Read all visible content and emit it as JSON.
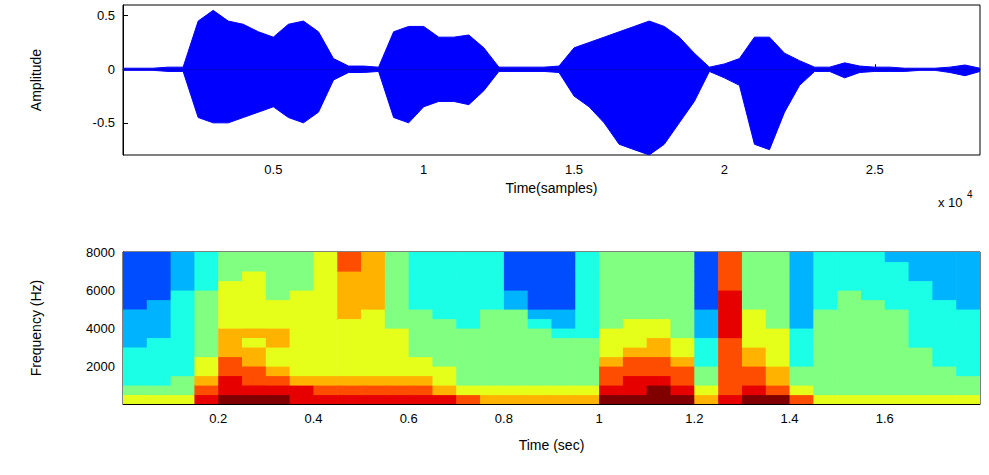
{
  "chart_data": [
    {
      "type": "area",
      "xlabel": "Time(samples)",
      "ylabel": "Amplitude",
      "x": [
        0,
        0.05,
        0.1,
        0.15,
        0.2,
        0.25,
        0.3,
        0.35,
        0.4,
        0.45,
        0.5,
        0.55,
        0.6,
        0.65,
        0.7,
        0.75,
        0.8,
        0.85,
        0.9,
        0.95,
        1,
        1.05,
        1.1,
        1.15,
        1.2,
        1.25,
        1.3,
        1.35,
        1.4,
        1.45,
        1.5,
        1.55,
        1.6,
        1.65,
        1.7,
        1.75,
        1.8,
        1.85,
        1.9,
        1.95,
        2,
        2.05,
        2.1,
        2.15,
        2.2,
        2.25,
        2.3,
        2.35,
        2.4,
        2.45,
        2.5,
        2.55,
        2.6,
        2.65,
        2.7,
        2.75,
        2.8,
        2.85
      ],
      "series": [
        {
          "color": "#0000ff",
          "values": [
            0.01,
            0.01,
            0.01,
            0.02,
            0.02,
            0.45,
            0.55,
            0.45,
            0.42,
            0.35,
            0.3,
            0.42,
            0.45,
            0.35,
            0.1,
            0.03,
            0.03,
            0.02,
            0.35,
            0.4,
            0.4,
            0.3,
            0.3,
            0.32,
            0.2,
            0.02,
            0.02,
            0.02,
            0.02,
            0.03,
            0.2,
            0.25,
            0.3,
            0.35,
            0.4,
            0.45,
            0.4,
            0.3,
            0.15,
            0.02,
            0.05,
            0.1,
            0.3,
            0.3,
            0.15,
            0.08,
            0.02,
            0.02,
            0.06,
            0.03,
            0.02,
            0.02,
            0.01,
            0.01,
            0.01,
            0.02,
            0.04,
            0.01
          ]
        },
        {
          "color": "#0000ff",
          "values": [
            -0.01,
            -0.01,
            -0.01,
            -0.02,
            -0.02,
            -0.45,
            -0.5,
            -0.5,
            -0.45,
            -0.4,
            -0.35,
            -0.45,
            -0.5,
            -0.4,
            -0.1,
            -0.03,
            -0.03,
            -0.02,
            -0.45,
            -0.5,
            -0.35,
            -0.3,
            -0.3,
            -0.33,
            -0.2,
            -0.02,
            -0.02,
            -0.02,
            -0.02,
            -0.03,
            -0.25,
            -0.35,
            -0.5,
            -0.7,
            -0.75,
            -0.8,
            -0.7,
            -0.5,
            -0.3,
            -0.02,
            -0.08,
            -0.15,
            -0.7,
            -0.75,
            -0.4,
            -0.15,
            -0.02,
            -0.02,
            -0.08,
            -0.03,
            -0.02,
            -0.02,
            -0.02,
            -0.01,
            -0.01,
            -0.03,
            -0.06,
            -0.02
          ]
        }
      ],
      "xlim": [
        0,
        2.85
      ],
      "ylim": [
        -0.8,
        0.6
      ],
      "xticks": [
        0.5,
        1,
        1.5,
        2,
        2.5
      ],
      "yticks": [
        -0.5,
        0,
        0.5
      ],
      "annotations": [
        {
          "text": "x 10",
          "superscript": "4"
        }
      ],
      "grid": false
    },
    {
      "type": "heatmap",
      "xlabel": "Time (sec)",
      "ylabel": "Frequency (Hz)",
      "x_edges": [
        0,
        0.05,
        0.1,
        0.15,
        0.2,
        0.25,
        0.3,
        0.35,
        0.4,
        0.45,
        0.5,
        0.55,
        0.6,
        0.65,
        0.7,
        0.75,
        0.8,
        0.85,
        0.9,
        0.95,
        1,
        1.05,
        1.1,
        1.15,
        1.2,
        1.25,
        1.3,
        1.35,
        1.4,
        1.45,
        1.5,
        1.55,
        1.6,
        1.65,
        1.7,
        1.75,
        1.8
      ],
      "y_edges": [
        0,
        500,
        1000,
        1500,
        2000,
        2500,
        3000,
        3500,
        4000,
        4500,
        5000,
        5500,
        6000,
        6500,
        7000,
        7500,
        8000
      ],
      "cells": [
        [
          6,
          5,
          4,
          4,
          4,
          4,
          3,
          3,
          3,
          3,
          2,
          2,
          2,
          2,
          2,
          2
        ],
        [
          6,
          5,
          4,
          4,
          4,
          4,
          4,
          3,
          3,
          3,
          3,
          2,
          2,
          2,
          2,
          2
        ],
        [
          6,
          5,
          5,
          4,
          4,
          4,
          4,
          4,
          4,
          4,
          4,
          4,
          3,
          3,
          3,
          3
        ],
        [
          9,
          8,
          7,
          6,
          6,
          5,
          5,
          5,
          5,
          5,
          5,
          5,
          4,
          4,
          4,
          4
        ],
        [
          10,
          9,
          9,
          8,
          8,
          7,
          7,
          7,
          6,
          6,
          6,
          6,
          6,
          5,
          5,
          5
        ],
        [
          10,
          9,
          8,
          8,
          7,
          7,
          6,
          7,
          6,
          6,
          6,
          6,
          6,
          6,
          5,
          5
        ],
        [
          10,
          9,
          8,
          7,
          6,
          6,
          7,
          7,
          6,
          6,
          6,
          5,
          5,
          5,
          5,
          5
        ],
        [
          9,
          9,
          7,
          6,
          6,
          6,
          6,
          6,
          6,
          6,
          6,
          6,
          5,
          5,
          5,
          5
        ],
        [
          9,
          8,
          7,
          6,
          6,
          6,
          6,
          6,
          6,
          6,
          6,
          6,
          6,
          6,
          6,
          6
        ],
        [
          9,
          8,
          7,
          6,
          6,
          6,
          6,
          6,
          6,
          7,
          7,
          7,
          7,
          7,
          8,
          8
        ],
        [
          9,
          8,
          7,
          6,
          6,
          6,
          6,
          6,
          6,
          6,
          7,
          7,
          7,
          7,
          7,
          7
        ],
        [
          9,
          8,
          7,
          6,
          6,
          6,
          6,
          6,
          5,
          5,
          5,
          5,
          5,
          5,
          5,
          5
        ],
        [
          9,
          8,
          7,
          6,
          6,
          5,
          5,
          5,
          5,
          5,
          4,
          4,
          4,
          4,
          4,
          4
        ],
        [
          9,
          7,
          6,
          6,
          5,
          5,
          5,
          5,
          5,
          4,
          4,
          4,
          4,
          4,
          4,
          4
        ],
        [
          8,
          6,
          5,
          5,
          5,
          5,
          5,
          5,
          4,
          4,
          4,
          4,
          4,
          4,
          4,
          4
        ],
        [
          7,
          6,
          5,
          5,
          5,
          5,
          5,
          5,
          5,
          5,
          4,
          4,
          4,
          4,
          4,
          4
        ],
        [
          7,
          6,
          5,
          5,
          5,
          5,
          5,
          5,
          5,
          5,
          3,
          3,
          2,
          2,
          2,
          2
        ],
        [
          7,
          6,
          5,
          5,
          5,
          5,
          5,
          5,
          4,
          3,
          2,
          2,
          2,
          2,
          2,
          2
        ],
        [
          7,
          6,
          5,
          5,
          5,
          5,
          5,
          4,
          3,
          3,
          2,
          2,
          2,
          2,
          2,
          2
        ],
        [
          7,
          6,
          5,
          5,
          5,
          5,
          5,
          4,
          4,
          4,
          4,
          4,
          4,
          4,
          4,
          4
        ],
        [
          10,
          9,
          8,
          8,
          7,
          6,
          6,
          6,
          5,
          5,
          5,
          5,
          5,
          5,
          5,
          5
        ],
        [
          10,
          9,
          9,
          8,
          8,
          7,
          6,
          6,
          6,
          5,
          5,
          5,
          5,
          5,
          5,
          5
        ],
        [
          10,
          10,
          9,
          8,
          8,
          7,
          7,
          6,
          6,
          5,
          5,
          5,
          5,
          5,
          5,
          5
        ],
        [
          10,
          9,
          8,
          8,
          7,
          6,
          6,
          5,
          5,
          5,
          5,
          5,
          5,
          5,
          5,
          5
        ],
        [
          7,
          6,
          5,
          5,
          4,
          4,
          4,
          3,
          3,
          3,
          2,
          2,
          2,
          2,
          2,
          2
        ],
        [
          9,
          8,
          8,
          8,
          8,
          8,
          8,
          9,
          9,
          9,
          9,
          9,
          8,
          8,
          8,
          8
        ],
        [
          10,
          9,
          8,
          8,
          7,
          7,
          6,
          6,
          6,
          6,
          5,
          5,
          5,
          5,
          5,
          5
        ],
        [
          10,
          8,
          7,
          7,
          6,
          6,
          6,
          6,
          5,
          5,
          5,
          5,
          5,
          5,
          5,
          5
        ],
        [
          8,
          6,
          5,
          5,
          4,
          4,
          4,
          4,
          3,
          3,
          3,
          3,
          3,
          3,
          3,
          3
        ],
        [
          6,
          5,
          5,
          5,
          5,
          5,
          5,
          5,
          5,
          5,
          4,
          4,
          4,
          4,
          4,
          4
        ],
        [
          6,
          5,
          5,
          5,
          5,
          5,
          5,
          5,
          5,
          5,
          5,
          5,
          4,
          4,
          4,
          4
        ],
        [
          6,
          5,
          5,
          5,
          5,
          5,
          5,
          5,
          5,
          5,
          5,
          4,
          4,
          4,
          4,
          4
        ],
        [
          6,
          5,
          5,
          5,
          5,
          5,
          5,
          5,
          5,
          5,
          4,
          4,
          4,
          4,
          4,
          3
        ],
        [
          6,
          5,
          5,
          5,
          5,
          5,
          4,
          4,
          4,
          4,
          4,
          4,
          4,
          3,
          3,
          3
        ],
        [
          6,
          5,
          5,
          5,
          4,
          4,
          4,
          4,
          4,
          4,
          4,
          3,
          3,
          3,
          3,
          3
        ],
        [
          6,
          5,
          5,
          4,
          4,
          4,
          4,
          4,
          4,
          4,
          3,
          3,
          3,
          3,
          3,
          3
        ]
      ],
      "color_range": [
        0,
        10
      ],
      "xlim": [
        0,
        1.8
      ],
      "ylim": [
        0,
        8000
      ],
      "xticks": [
        0.2,
        0.4,
        0.6,
        0.8,
        1,
        1.2,
        1.4,
        1.6
      ],
      "yticks": [
        2000,
        4000,
        6000,
        8000
      ],
      "grid": false
    }
  ]
}
